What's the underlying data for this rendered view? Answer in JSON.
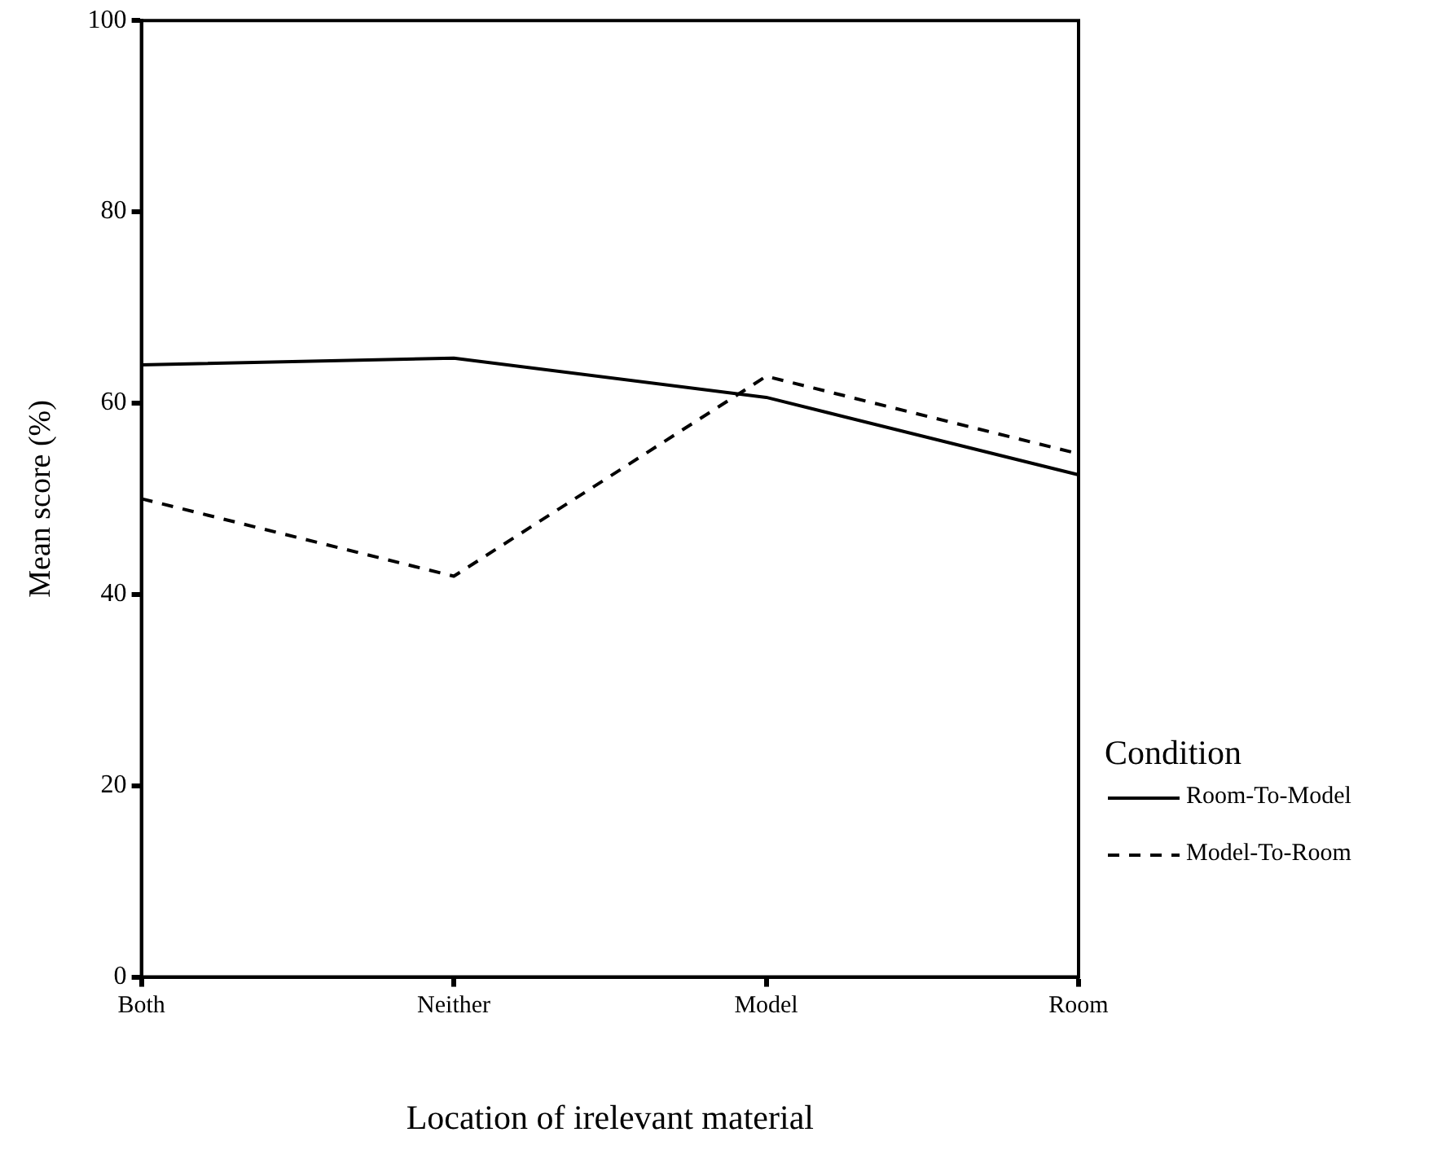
{
  "chart_data": {
    "type": "line",
    "xlabel": "Location of irelevant material",
    "ylabel": "Mean score (%)",
    "legend_title": "Condition",
    "categories": [
      "Both",
      "Neither",
      "Model",
      "Room"
    ],
    "series": [
      {
        "name": "Room-To-Model",
        "color": "#000000",
        "line_style": "solid",
        "values": [
          64,
          64.7,
          60.6,
          52.5
        ]
      },
      {
        "name": "Model-To-Room",
        "color": "#000000",
        "line_style": "dashed",
        "values": [
          50,
          41.9,
          62.8,
          54.7
        ]
      }
    ],
    "ylim": [
      0,
      100
    ],
    "yticks": [
      0,
      20,
      40,
      60,
      80,
      100
    ],
    "grid": false,
    "legend": "right",
    "marker": "none"
  }
}
